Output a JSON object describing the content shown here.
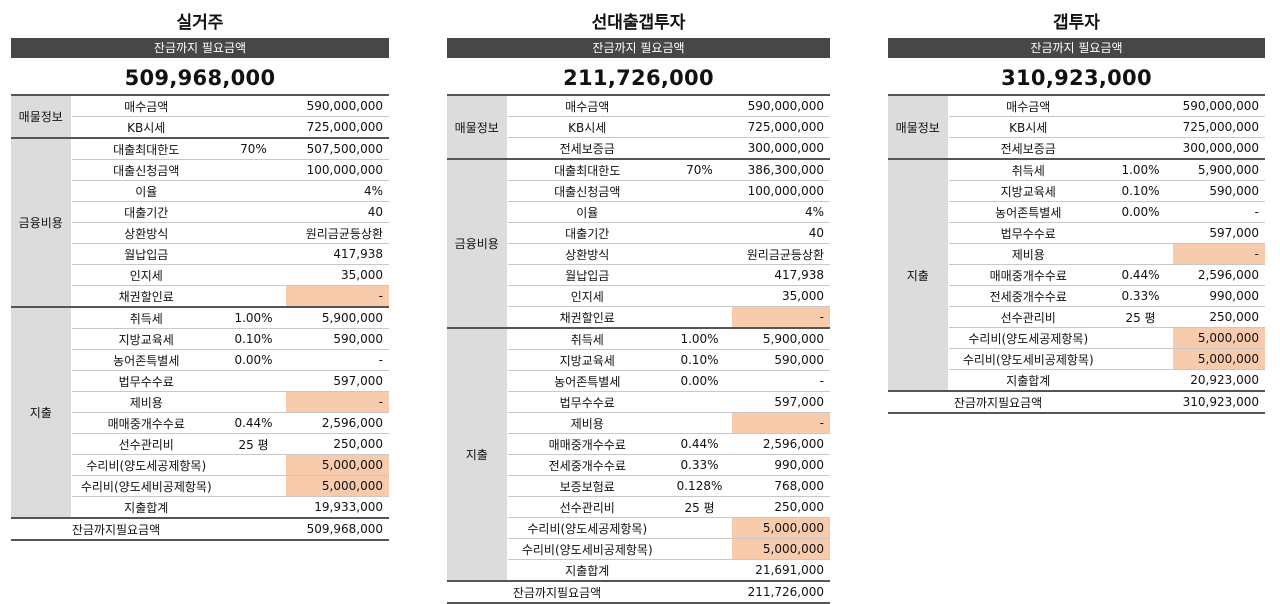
{
  "common": {
    "header_bar": "잔금까지 필요금액",
    "total_label": "잔금까지필요금액"
  },
  "groups": {
    "property": "매물정보",
    "finance": "금융비용",
    "expense": "지출"
  },
  "p1": {
    "title": "실거주",
    "total": "509,968,000",
    "rows": [
      {
        "label": "매수금액",
        "pct": "",
        "value": "590,000,000"
      },
      {
        "label": "KB시세",
        "pct": "",
        "value": "725,000,000"
      },
      {
        "label": "대출최대한도",
        "pct": "70%",
        "value": "507,500,000"
      },
      {
        "label": "대출신청금액",
        "pct": "",
        "value": "100,000,000"
      },
      {
        "label": "이율",
        "pct": "",
        "value": "4%"
      },
      {
        "label": "대출기간",
        "pct": "",
        "value": "40"
      },
      {
        "label": "상환방식",
        "pct": "",
        "value": "원리금균등상환"
      },
      {
        "label": "월납입금",
        "pct": "",
        "value": "417,938"
      },
      {
        "label": "인지세",
        "pct": "",
        "value": "35,000"
      },
      {
        "label": "채권할인료",
        "pct": "",
        "value": "-"
      },
      {
        "label": "취득세",
        "pct": "1.00%",
        "value": "5,900,000"
      },
      {
        "label": "지방교육세",
        "pct": "0.10%",
        "value": "590,000"
      },
      {
        "label": "농어존특별세",
        "pct": "0.00%",
        "value": "-"
      },
      {
        "label": "법무수수료",
        "pct": "",
        "value": "597,000"
      },
      {
        "label": "제비용",
        "pct": "",
        "value": "-"
      },
      {
        "label": "매매중개수수료",
        "pct": "0.44%",
        "value": "2,596,000"
      },
      {
        "label": "선수관리비",
        "pct": "25 평",
        "value": "250,000"
      },
      {
        "label": "수리비(양도세공제항목)",
        "pct": "",
        "value": "5,000,000"
      },
      {
        "label": "수리비(양도세비공제항목)",
        "pct": "",
        "value": "5,000,000"
      },
      {
        "label": "지출합계",
        "pct": "",
        "value": "19,933,000"
      },
      {
        "label": "",
        "pct": "",
        "value": "509,968,000"
      }
    ]
  },
  "p2": {
    "title": "선대출갭투자",
    "total": "211,726,000",
    "rows": [
      {
        "label": "매수금액",
        "pct": "",
        "value": "590,000,000"
      },
      {
        "label": "KB시세",
        "pct": "",
        "value": "725,000,000"
      },
      {
        "label": "전세보증금",
        "pct": "",
        "value": "300,000,000"
      },
      {
        "label": "대출최대한도",
        "pct": "70%",
        "value": "386,300,000"
      },
      {
        "label": "대출신청금액",
        "pct": "",
        "value": "100,000,000"
      },
      {
        "label": "이율",
        "pct": "",
        "value": "4%"
      },
      {
        "label": "대출기간",
        "pct": "",
        "value": "40"
      },
      {
        "label": "상환방식",
        "pct": "",
        "value": "원리금균등상환"
      },
      {
        "label": "월납입금",
        "pct": "",
        "value": "417,938"
      },
      {
        "label": "인지세",
        "pct": "",
        "value": "35,000"
      },
      {
        "label": "채권할인료",
        "pct": "",
        "value": "-"
      },
      {
        "label": "취득세",
        "pct": "1.00%",
        "value": "5,900,000"
      },
      {
        "label": "지방교육세",
        "pct": "0.10%",
        "value": "590,000"
      },
      {
        "label": "농어존특별세",
        "pct": "0.00%",
        "value": "-"
      },
      {
        "label": "법무수수료",
        "pct": "",
        "value": "597,000"
      },
      {
        "label": "제비용",
        "pct": "",
        "value": "-"
      },
      {
        "label": "매매중개수수료",
        "pct": "0.44%",
        "value": "2,596,000"
      },
      {
        "label": "전세중개수수료",
        "pct": "0.33%",
        "value": "990,000"
      },
      {
        "label": "보증보험료",
        "pct": "0.128%",
        "value": "768,000"
      },
      {
        "label": "선수관리비",
        "pct": "25 평",
        "value": "250,000"
      },
      {
        "label": "수리비(양도세공제항목)",
        "pct": "",
        "value": "5,000,000"
      },
      {
        "label": "수리비(양도세비공제항목)",
        "pct": "",
        "value": "5,000,000"
      },
      {
        "label": "지출합계",
        "pct": "",
        "value": "21,691,000"
      },
      {
        "label": "",
        "pct": "",
        "value": "211,726,000"
      }
    ]
  },
  "p3": {
    "title": "갭투자",
    "total": "310,923,000",
    "rows": [
      {
        "label": "매수금액",
        "pct": "",
        "value": "590,000,000"
      },
      {
        "label": "KB시세",
        "pct": "",
        "value": "725,000,000"
      },
      {
        "label": "전세보증금",
        "pct": "",
        "value": "300,000,000"
      },
      {
        "label": "취득세",
        "pct": "1.00%",
        "value": "5,900,000"
      },
      {
        "label": "지방교육세",
        "pct": "0.10%",
        "value": "590,000"
      },
      {
        "label": "농어존특별세",
        "pct": "0.00%",
        "value": "-"
      },
      {
        "label": "법무수수료",
        "pct": "",
        "value": "597,000"
      },
      {
        "label": "제비용",
        "pct": "",
        "value": "-"
      },
      {
        "label": "매매중개수수료",
        "pct": "0.44%",
        "value": "2,596,000"
      },
      {
        "label": "전세중개수수료",
        "pct": "0.33%",
        "value": "990,000"
      },
      {
        "label": "선수관리비",
        "pct": "25 평",
        "value": "250,000"
      },
      {
        "label": "수리비(양도세공제항목)",
        "pct": "",
        "value": "5,000,000"
      },
      {
        "label": "수리비(양도세비공제항목)",
        "pct": "",
        "value": "5,000,000"
      },
      {
        "label": "지출합계",
        "pct": "",
        "value": "20,923,000"
      },
      {
        "label": "",
        "pct": "",
        "value": "310,923,000"
      }
    ]
  }
}
